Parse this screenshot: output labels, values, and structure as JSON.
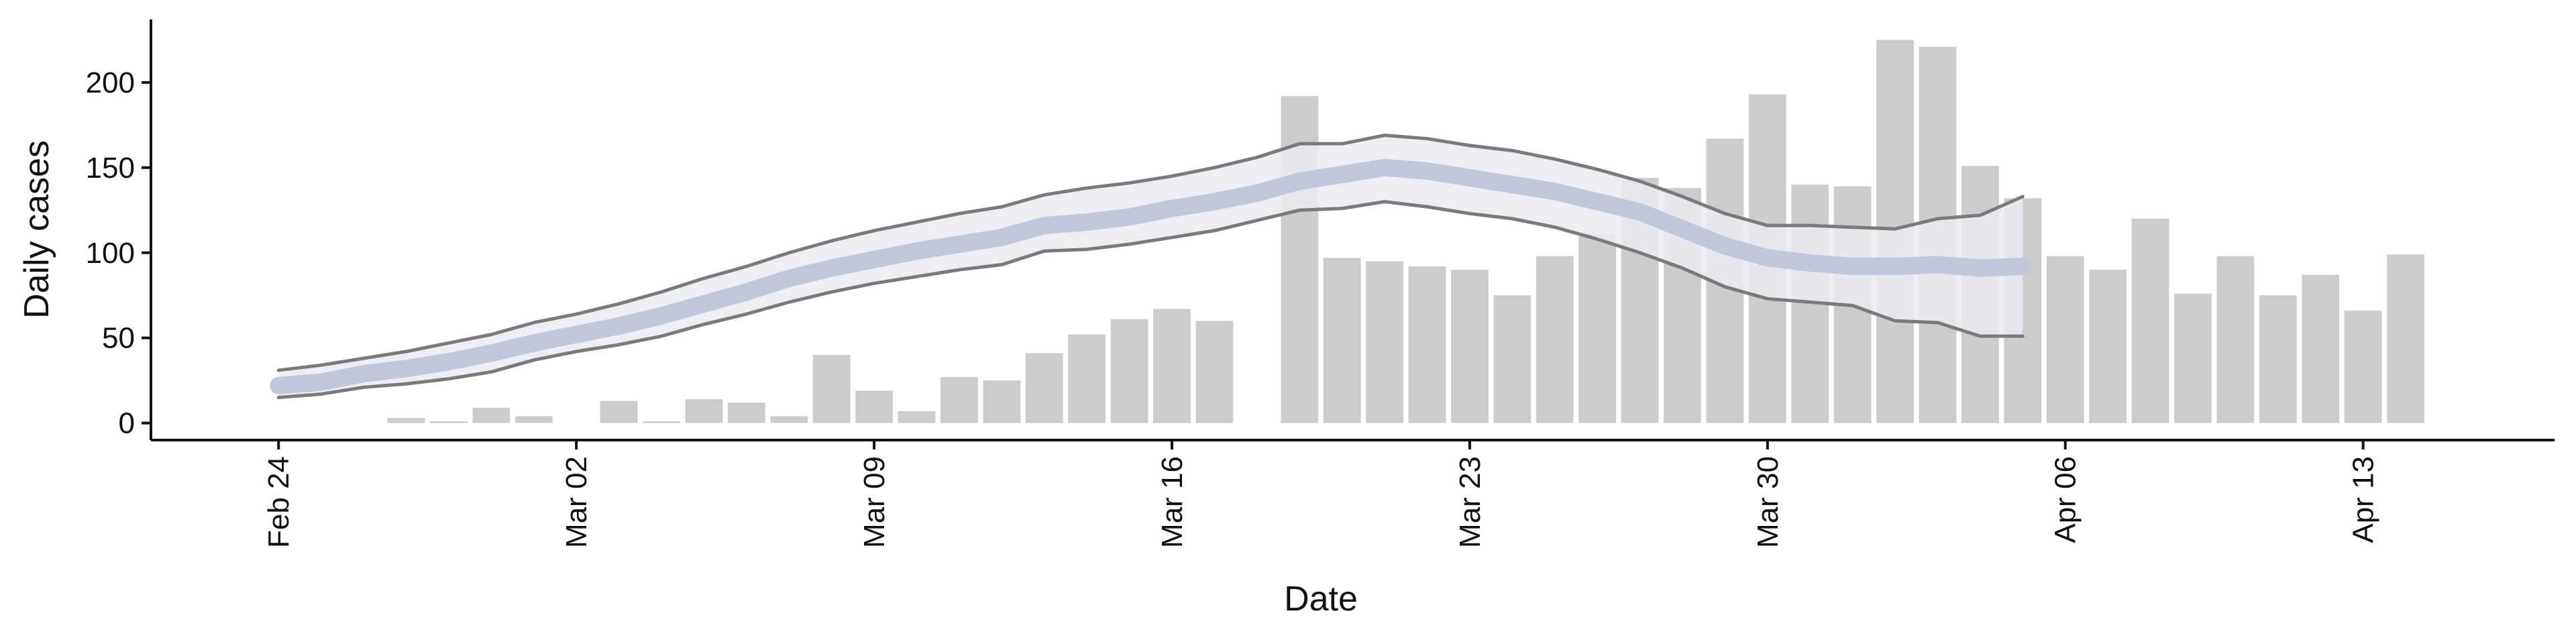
{
  "chart_data": {
    "type": "bar",
    "x_label": "Date",
    "y_label": "Daily cases",
    "categories": [
      "Feb 24",
      null,
      null,
      null,
      null,
      null,
      null,
      "Mar 02",
      null,
      null,
      null,
      null,
      null,
      null,
      "Mar 09",
      null,
      null,
      null,
      null,
      null,
      null,
      "Mar 16",
      null,
      null,
      null,
      null,
      null,
      null,
      "Mar 23",
      null,
      null,
      null,
      null,
      null,
      null,
      "Mar 30",
      null,
      null,
      null,
      null,
      null,
      null,
      "Apr 06",
      null,
      null,
      null,
      null,
      null,
      null,
      "Apr 13",
      null
    ],
    "values": [
      0,
      0,
      0,
      3,
      1,
      9,
      4,
      0,
      13,
      1,
      14,
      12,
      4,
      40,
      19,
      7,
      27,
      25,
      41,
      52,
      61,
      67,
      60,
      null,
      192,
      97,
      95,
      92,
      90,
      75,
      98,
      111,
      144,
      138,
      167,
      193,
      140,
      139,
      225,
      221,
      151,
      132,
      98,
      90,
      120,
      76,
      98,
      75,
      87,
      66,
      99
    ],
    "color": "#cccccc",
    "band_upper": [
      31,
      34,
      38,
      42,
      47,
      52,
      59,
      64,
      70,
      77,
      85,
      92,
      100,
      107,
      113,
      118,
      123,
      127,
      134,
      138,
      141,
      145,
      150,
      156,
      164,
      164,
      169,
      167,
      163,
      160,
      155,
      149,
      142,
      133,
      123,
      116,
      116,
      115,
      114,
      120,
      122,
      133,
      null,
      null,
      null,
      null,
      null,
      null,
      null,
      null,
      null
    ],
    "band_lower": [
      15,
      17,
      21,
      23,
      26,
      30,
      37,
      42,
      46,
      51,
      58,
      64,
      71,
      77,
      82,
      86,
      90,
      93,
      101,
      102,
      105,
      109,
      113,
      119,
      125,
      126,
      130,
      127,
      123,
      120,
      115,
      108,
      100,
      91,
      80,
      73,
      71,
      69,
      60,
      59,
      51,
      51,
      null,
      null,
      null,
      null,
      null,
      null,
      null,
      null,
      null
    ],
    "median": [
      22,
      24,
      29,
      32,
      36,
      41,
      47,
      52,
      57,
      63,
      70,
      77,
      85,
      91,
      96,
      101,
      105,
      109,
      116,
      118,
      121,
      126,
      130,
      135,
      142,
      146,
      150,
      148,
      144,
      140,
      136,
      130,
      124,
      114,
      104,
      97,
      94,
      92,
      92,
      93,
      91,
      92,
      null,
      null,
      null,
      null,
      null,
      null,
      null,
      null,
      null
    ],
    "band_color": "#e9ebf2",
    "line_color": "#7a7a7a",
    "median_color": "#c2c8dc",
    "ylim": [
      -10,
      237
    ],
    "yticks": [
      0,
      50,
      100,
      150,
      200
    ]
  }
}
